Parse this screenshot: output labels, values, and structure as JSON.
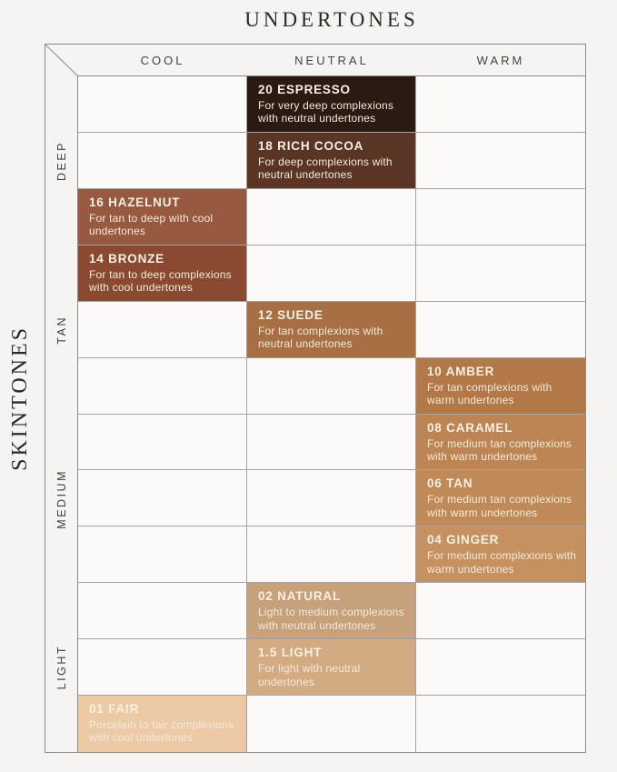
{
  "chart_data": {
    "type": "table",
    "title": "UNDERTONES",
    "x_axis": {
      "label": "UNDERTONES",
      "categories": [
        "COOL",
        "NEUTRAL",
        "WARM"
      ]
    },
    "y_axis": {
      "label": "SKINTONES",
      "categories": [
        "DEEP",
        "TAN",
        "MEDIUM",
        "LIGHT"
      ]
    },
    "grid": {
      "rows": 12,
      "cols": 3,
      "rows_per_group": 3
    },
    "cells": [
      {
        "row": 0,
        "undertone": "NEUTRAL",
        "skintone_group": "DEEP",
        "name": "20 ESPRESSO",
        "description": "For very deep complexions with neutral undertones",
        "swatch_hex": "#2b1a12"
      },
      {
        "row": 1,
        "undertone": "NEUTRAL",
        "skintone_group": "DEEP",
        "name": "18 RICH COCOA",
        "description": "For deep complexions with neutral undertones",
        "swatch_hex": "#5a3424"
      },
      {
        "row": 2,
        "undertone": "COOL",
        "skintone_group": "DEEP",
        "name": "16 HAZELNUT",
        "description": "For tan to deep with cool undertones",
        "swatch_hex": "#975940"
      },
      {
        "row": 3,
        "undertone": "COOL",
        "skintone_group": "TAN",
        "name": "14 BRONZE",
        "description": "For tan to deep complexions with cool undertones",
        "swatch_hex": "#8a4a31"
      },
      {
        "row": 4,
        "undertone": "NEUTRAL",
        "skintone_group": "TAN",
        "name": "12 SUEDE",
        "description": "For tan complexions with neutral undertones",
        "swatch_hex": "#a96f44"
      },
      {
        "row": 5,
        "undertone": "WARM",
        "skintone_group": "TAN",
        "name": "10 AMBER",
        "description": "For tan complexions with warm undertones",
        "swatch_hex": "#b37848"
      },
      {
        "row": 6,
        "undertone": "WARM",
        "skintone_group": "MEDIUM",
        "name": "08 CARAMEL",
        "description": "For medium tan complexions with warm undertones",
        "swatch_hex": "#bd8553"
      },
      {
        "row": 7,
        "undertone": "WARM",
        "skintone_group": "MEDIUM",
        "name": "06 TAN",
        "description": "For medium tan complexions with warm undertones",
        "swatch_hex": "#c08a58"
      },
      {
        "row": 8,
        "undertone": "WARM",
        "skintone_group": "MEDIUM",
        "name": "04 GINGER",
        "description": "For medium complexions with warm undertones",
        "swatch_hex": "#c69160"
      },
      {
        "row": 9,
        "undertone": "NEUTRAL",
        "skintone_group": "LIGHT",
        "name": "02 NATURAL",
        "description": "Light to medium complexions with neutral undertones",
        "swatch_hex": "#c6a17c"
      },
      {
        "row": 10,
        "undertone": "NEUTRAL",
        "skintone_group": "LIGHT",
        "name": "1.5 LIGHT",
        "description": "For light with neutral undertones",
        "swatch_hex": "#d2ab83"
      },
      {
        "row": 11,
        "undertone": "COOL",
        "skintone_group": "LIGHT",
        "name": "01 FAIR",
        "description": "Porcelain to fair complexions with cool undertones",
        "swatch_hex": "#eccaa6"
      }
    ],
    "colors": {
      "page_background": "#f5f4f2",
      "empty_cell": "#fbfaf8",
      "outer_line": "#8c8b87",
      "inner_line": "#a5a3a0",
      "cell_title_text": "#f8f0e2",
      "cell_desc_text": "#f3ead9",
      "axis_text": "#2b2a27"
    }
  }
}
